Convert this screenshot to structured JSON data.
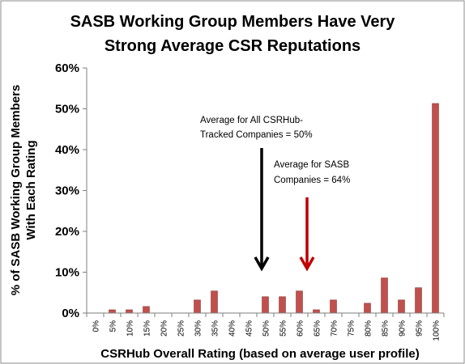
{
  "colors": {
    "bar": "#C0504D",
    "bar_edge": "#8C3B38",
    "axis": "#7F7F7F",
    "grid": "#D9D9D9",
    "arrow_all": "#000000",
    "arrow_sasb": "#C00000"
  },
  "chart_data": {
    "type": "bar",
    "title_lines": [
      "SASB Working Group Members Have Very",
      "Strong Average CSR Reputations"
    ],
    "xlabel": "CSRHub Overall Rating (based on average user profile)",
    "ylabel_lines": [
      "% of SASB Working Group Members",
      "With Each Rating"
    ],
    "ylim": [
      0,
      60
    ],
    "yticks": [
      "0%",
      "10%",
      "20%",
      "30%",
      "40%",
      "50%",
      "60%"
    ],
    "grid": false,
    "legend": "none",
    "categories": [
      "0%",
      "5%",
      "10%",
      "15%",
      "20%",
      "25%",
      "30%",
      "35%",
      "40%",
      "45%",
      "50%",
      "55%",
      "60%",
      "65%",
      "70%",
      "75%",
      "80%",
      "85%",
      "90%",
      "95%",
      "100%"
    ],
    "values": [
      0,
      0.8,
      0.8,
      1.6,
      0,
      0,
      3.2,
      5.4,
      0,
      0,
      4.0,
      4.0,
      5.4,
      0.8,
      3.2,
      0,
      2.4,
      8.6,
      3.2,
      6.2,
      51.3
    ],
    "annotations": [
      {
        "id": "all",
        "lines": [
          "Average for All CSRHub-",
          "Tracked Companies = 50%"
        ],
        "x_category": "50%"
      },
      {
        "id": "sasb",
        "lines": [
          "Average for SASB",
          "Companies = 64%"
        ],
        "x_category": "65%"
      }
    ]
  }
}
